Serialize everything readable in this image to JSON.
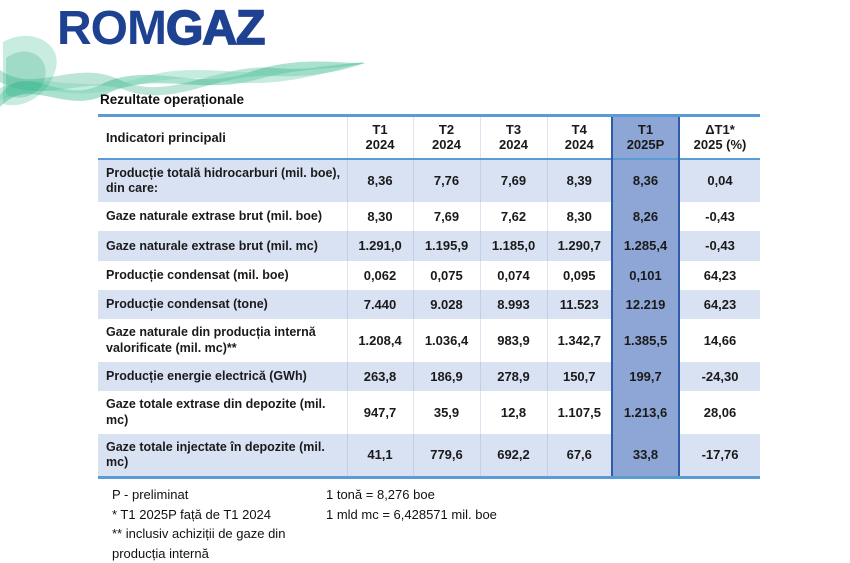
{
  "logo": {
    "part1": "ROM",
    "part2": "GAZ"
  },
  "title": "Rezultate operaționale",
  "table": {
    "label_header": "Indicatori principali",
    "columns": [
      [
        "T1",
        "2024"
      ],
      [
        "T2",
        "2024"
      ],
      [
        "T3",
        "2024"
      ],
      [
        "T4",
        "2024"
      ],
      [
        "T1",
        "2025P"
      ],
      [
        "ΔT1*",
        "2025 (%)"
      ]
    ],
    "highlight_column_index": 4,
    "rows": [
      {
        "label": "Producție totală hidrocarburi (mil. boe), din care:",
        "values": [
          "8,36",
          "7,76",
          "7,69",
          "8,39",
          "8,36",
          "0,04"
        ]
      },
      {
        "label": "Gaze naturale extrase brut (mil. boe)",
        "values": [
          "8,30",
          "7,69",
          "7,62",
          "8,30",
          "8,26",
          "-0,43"
        ]
      },
      {
        "label": "Gaze naturale extrase brut (mil. mc)",
        "values": [
          "1.291,0",
          "1.195,9",
          "1.185,0",
          "1.290,7",
          "1.285,4",
          "-0,43"
        ]
      },
      {
        "label": "Producție condensat (mil. boe)",
        "values": [
          "0,062",
          "0,075",
          "0,074",
          "0,095",
          "0,101",
          "64,23"
        ]
      },
      {
        "label": "Producție condensat (tone)",
        "values": [
          "7.440",
          "9.028",
          "8.993",
          "11.523",
          "12.219",
          "64,23"
        ]
      },
      {
        "label": "Gaze naturale din producția internă valorificate (mil. mc)**",
        "values": [
          "1.208,4",
          "1.036,4",
          "983,9",
          "1.342,7",
          "1.385,5",
          "14,66"
        ]
      },
      {
        "label": "Producție energie electrică (GWh)",
        "values": [
          "263,8",
          "186,9",
          "278,9",
          "150,7",
          "199,7",
          "-24,30"
        ]
      },
      {
        "label": "Gaze totale extrase din depozite (mil. mc)",
        "values": [
          "947,7",
          "35,9",
          "12,8",
          "1.107,5",
          "1.213,6",
          "28,06"
        ]
      },
      {
        "label": "Gaze totale injectate în depozite (mil. mc)",
        "values": [
          "41,1",
          "779,6",
          "692,2",
          "67,6",
          "33,8",
          "-17,76"
        ]
      }
    ]
  },
  "footnotes": [
    {
      "left": "P - preliminat",
      "right": "1 tonă = 8,276 boe"
    },
    {
      "left": "* T1 2025P față de T1 2024",
      "right": "1 mld mc = 6,428571 mil. boe"
    },
    {
      "left": "** inclusiv achiziții de gaze din producția internă",
      "right": ""
    }
  ],
  "colors": {
    "logo_blue": "#1E4191",
    "accent_line": "#5B9BD5",
    "row_stripe": "#D9E2F3",
    "highlight_fill": "#8EA6D5",
    "highlight_border": "#2F5CA8",
    "wave_green": "#2EB488"
  }
}
